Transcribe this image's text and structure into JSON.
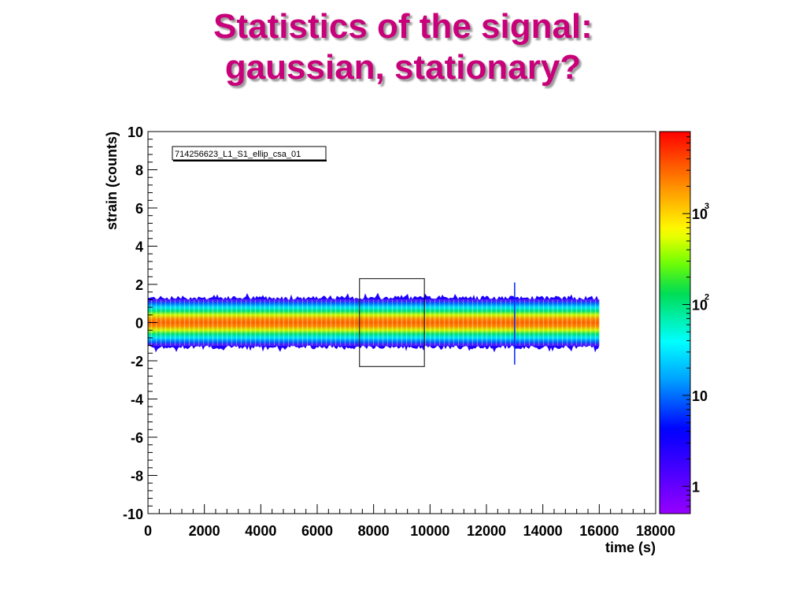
{
  "slide": {
    "title_line1": "Statistics of the signal:",
    "title_line2": "gaussian, stationary?"
  },
  "chart_data": {
    "type": "heatmap",
    "title": "714256623_L1_S1_ellip_csa_01",
    "xlabel": "time (s)",
    "ylabel": "strain (counts)",
    "xlim": [
      0,
      18000
    ],
    "ylim": [
      -10,
      10
    ],
    "x_ticks": [
      0,
      2000,
      4000,
      6000,
      8000,
      10000,
      12000,
      14000,
      16000,
      18000
    ],
    "y_ticks": [
      -10,
      -8,
      -6,
      -4,
      -2,
      0,
      2,
      4,
      6,
      8,
      10
    ],
    "data_extent": {
      "x": [
        0,
        16000
      ],
      "y": [
        -1.2,
        1.2
      ]
    },
    "band_profile": [
      {
        "y": 1.2,
        "level": 1
      },
      {
        "y": 1.0,
        "level": 10
      },
      {
        "y": 0.8,
        "level": 30
      },
      {
        "y": 0.6,
        "level": 100
      },
      {
        "y": 0.4,
        "level": 500
      },
      {
        "y": 0.2,
        "level": 2000
      },
      {
        "y": 0.0,
        "level": 3000
      }
    ],
    "spike": {
      "x": 13000,
      "y_range": [
        -2.2,
        2.1
      ]
    },
    "selection_box": {
      "x": [
        7500,
        9800
      ],
      "y": [
        -2.3,
        2.3
      ]
    },
    "colorbar": {
      "scale": "log",
      "range": [
        0.5,
        8000
      ],
      "labels": [
        {
          "value": 1,
          "text": "1"
        },
        {
          "value": 10,
          "text": "10"
        },
        {
          "value": 100,
          "base": "10",
          "exp": "2"
        },
        {
          "value": 1000,
          "base": "10",
          "exp": "3"
        }
      ]
    },
    "grid": false,
    "legend": "none"
  }
}
